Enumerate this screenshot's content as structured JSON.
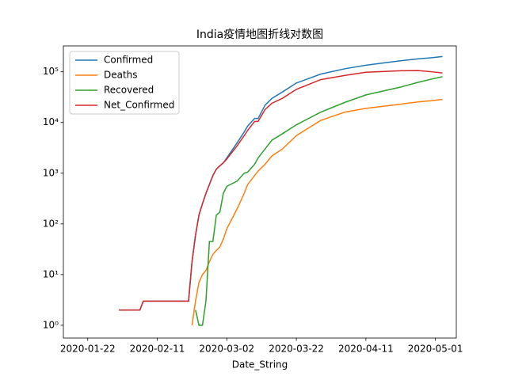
{
  "chart_data": {
    "type": "line",
    "title": "India疫情地图折线对数图",
    "x_label": "Date_String",
    "x": [
      "2020-01-31",
      "2020-02-06",
      "2020-02-07",
      "2020-02-20",
      "2020-02-21",
      "2020-02-22",
      "2020-02-23",
      "2020-02-24",
      "2020-02-25",
      "2020-02-26",
      "2020-02-27",
      "2020-02-28",
      "2020-02-29",
      "2020-03-01",
      "2020-03-02",
      "2020-03-05",
      "2020-03-07",
      "2020-03-08",
      "2020-03-10",
      "2020-03-11",
      "2020-03-13",
      "2020-03-15",
      "2020-03-18",
      "2020-03-22",
      "2020-03-29",
      "2020-04-05",
      "2020-04-11",
      "2020-04-21",
      "2020-04-26",
      "2020-04-30",
      "2020-05-03"
    ],
    "series": [
      {
        "name": "Confirmed",
        "color": "#1f77b4",
        "values": [
          2,
          2,
          3,
          3,
          18,
          60,
          150,
          250,
          400,
          600,
          900,
          1200,
          1400,
          1600,
          2000,
          4000,
          6500,
          8500,
          12000,
          12000,
          22000,
          30000,
          40000,
          60000,
          90000,
          115000,
          135000,
          165000,
          180000,
          190000,
          200000
        ]
      },
      {
        "name": "Deaths",
        "color": "#ff7f0e",
        "values": [
          null,
          null,
          null,
          null,
          1,
          3,
          7,
          10,
          12,
          18,
          25,
          30,
          35,
          50,
          80,
          200,
          400,
          600,
          900,
          1100,
          1500,
          2200,
          3000,
          5500,
          11000,
          16000,
          19000,
          23000,
          25500,
          27000,
          28500
        ]
      },
      {
        "name": "Recovered",
        "color": "#2ca02c",
        "values": [
          null,
          null,
          null,
          null,
          null,
          2,
          1,
          1,
          3,
          45,
          45,
          150,
          170,
          400,
          550,
          700,
          1000,
          1050,
          1500,
          2000,
          3000,
          4500,
          6000,
          9000,
          16000,
          25000,
          35000,
          50000,
          62000,
          72000,
          80000
        ]
      },
      {
        "name": "Net_Confirmed",
        "color": "#d62728",
        "values": [
          2,
          2,
          3,
          3,
          18,
          60,
          150,
          250,
          400,
          600,
          900,
          1200,
          1400,
          1600,
          1900,
          3500,
          5500,
          7000,
          10500,
          10500,
          18000,
          24000,
          30000,
          45000,
          70000,
          85000,
          98000,
          105000,
          106000,
          100000,
          95000
        ]
      }
    ],
    "xlim": [
      "2020-01-15",
      "2020-05-07"
    ],
    "xticks": [
      "2020-01-22",
      "2020-02-11",
      "2020-03-02",
      "2020-03-22",
      "2020-04-11",
      "2020-05-01"
    ],
    "ylim": [
      0.56,
      324000
    ],
    "y_scale": "log",
    "yticks": [
      {
        "value": 1,
        "label": "10⁰"
      },
      {
        "value": 10,
        "label": "10¹"
      },
      {
        "value": 100,
        "label": "10²"
      },
      {
        "value": 1000,
        "label": "10³"
      },
      {
        "value": 10000,
        "label": "10⁴"
      },
      {
        "value": 100000,
        "label": "10⁵"
      }
    ],
    "legend": "upper left",
    "grid": false
  }
}
